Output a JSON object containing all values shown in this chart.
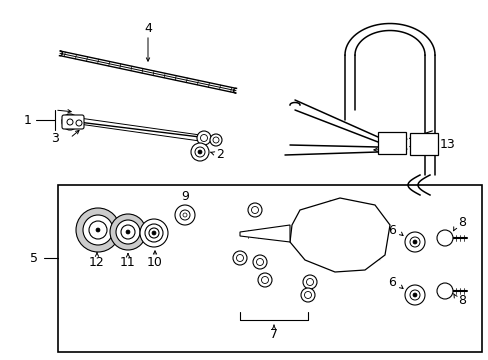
{
  "background_color": "#ffffff",
  "line_color": "#000000",
  "font_size": 9,
  "figsize": [
    4.89,
    3.6
  ],
  "dpi": 100
}
